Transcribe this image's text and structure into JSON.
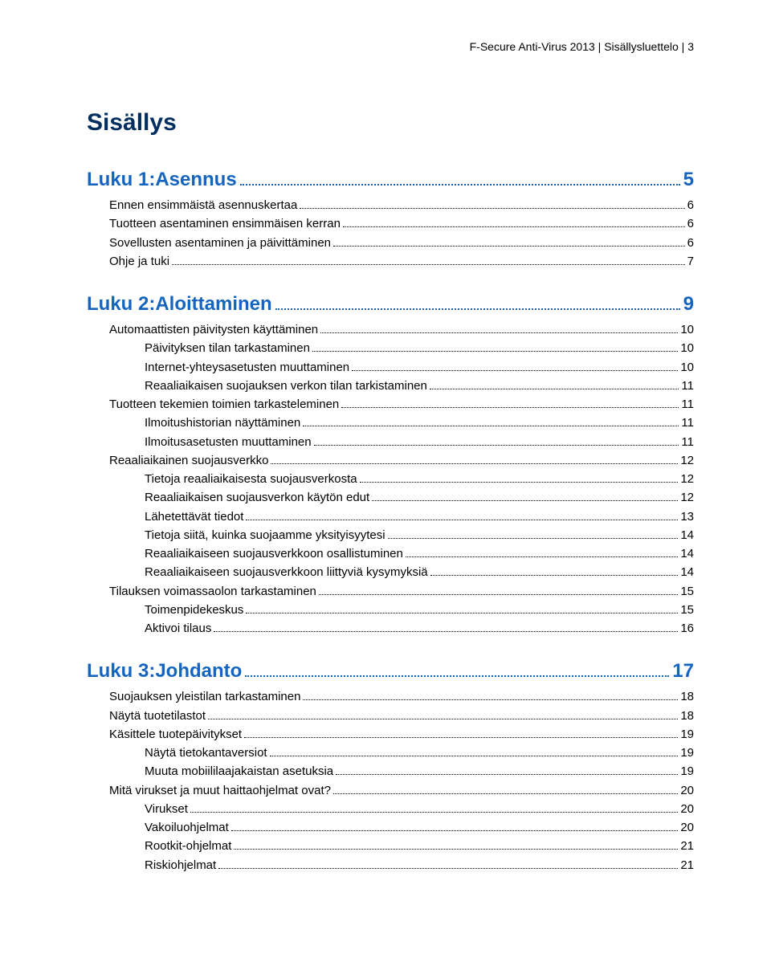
{
  "header": "F-Secure Anti-Virus 2013 | Sisällysluettelo | 3",
  "doc_title": "Sisällys",
  "chapters": [
    {
      "title": "Luku 1:Asennus",
      "page": "5",
      "entries": [
        {
          "level": 1,
          "label": "Ennen ensimmäistä asennuskertaa",
          "page": "6"
        },
        {
          "level": 1,
          "label": "Tuotteen asentaminen ensimmäisen kerran",
          "page": "6"
        },
        {
          "level": 1,
          "label": "Sovellusten asentaminen ja päivittäminen",
          "page": "6"
        },
        {
          "level": 1,
          "label": "Ohje ja tuki",
          "page": "7"
        }
      ]
    },
    {
      "title": "Luku 2:Aloittaminen",
      "page": "9",
      "entries": [
        {
          "level": 1,
          "label": "Automaattisten päivitysten käyttäminen",
          "page": "10"
        },
        {
          "level": 2,
          "label": "Päivityksen tilan tarkastaminen",
          "page": "10"
        },
        {
          "level": 2,
          "label": "Internet-yhteysasetusten muuttaminen",
          "page": "10"
        },
        {
          "level": 2,
          "label": "Reaaliaikaisen suojauksen verkon tilan tarkistaminen",
          "page": "11"
        },
        {
          "level": 1,
          "label": "Tuotteen tekemien toimien tarkasteleminen",
          "page": "11"
        },
        {
          "level": 2,
          "label": "Ilmoitushistorian näyttäminen",
          "page": "11"
        },
        {
          "level": 2,
          "label": "Ilmoitusasetusten muuttaminen",
          "page": "11"
        },
        {
          "level": 1,
          "label": "Reaaliaikainen suojausverkko",
          "page": "12"
        },
        {
          "level": 2,
          "label": "Tietoja reaaliaikaisesta suojausverkosta",
          "page": "12"
        },
        {
          "level": 2,
          "label": "Reaaliaikaisen suojausverkon käytön edut",
          "page": "12"
        },
        {
          "level": 2,
          "label": "Lähetettävät tiedot",
          "page": "13"
        },
        {
          "level": 2,
          "label": "Tietoja siitä, kuinka suojaamme yksityisyytesi",
          "page": "14"
        },
        {
          "level": 2,
          "label": "Reaaliaikaiseen suojausverkkoon osallistuminen",
          "page": "14"
        },
        {
          "level": 2,
          "label": "Reaaliaikaiseen suojausverkkoon liittyviä kysymyksiä",
          "page": "14"
        },
        {
          "level": 1,
          "label": "Tilauksen voimassaolon tarkastaminen",
          "page": "15"
        },
        {
          "level": 2,
          "label": "Toimenpidekeskus",
          "page": "15"
        },
        {
          "level": 2,
          "label": "Aktivoi tilaus",
          "page": "16"
        }
      ]
    },
    {
      "title": "Luku 3:Johdanto",
      "page": "17",
      "entries": [
        {
          "level": 1,
          "label": "Suojauksen yleistilan tarkastaminen",
          "page": "18"
        },
        {
          "level": 1,
          "label": "Näytä tuotetilastot",
          "page": "18"
        },
        {
          "level": 1,
          "label": "Käsittele tuotepäivitykset",
          "page": "19"
        },
        {
          "level": 2,
          "label": "Näytä tietokantaversiot",
          "page": "19"
        },
        {
          "level": 2,
          "label": "Muuta mobiililaajakaistan asetuksia",
          "page": "19"
        },
        {
          "level": 1,
          "label": "Mitä virukset ja muut haittaohjelmat ovat?",
          "page": "20"
        },
        {
          "level": 2,
          "label": "Virukset",
          "page": "20"
        },
        {
          "level": 2,
          "label": "Vakoiluohjelmat",
          "page": "20"
        },
        {
          "level": 2,
          "label": "Rootkit-ohjelmat",
          "page": "21"
        },
        {
          "level": 2,
          "label": "Riskiohjelmat",
          "page": "21"
        }
      ]
    }
  ]
}
